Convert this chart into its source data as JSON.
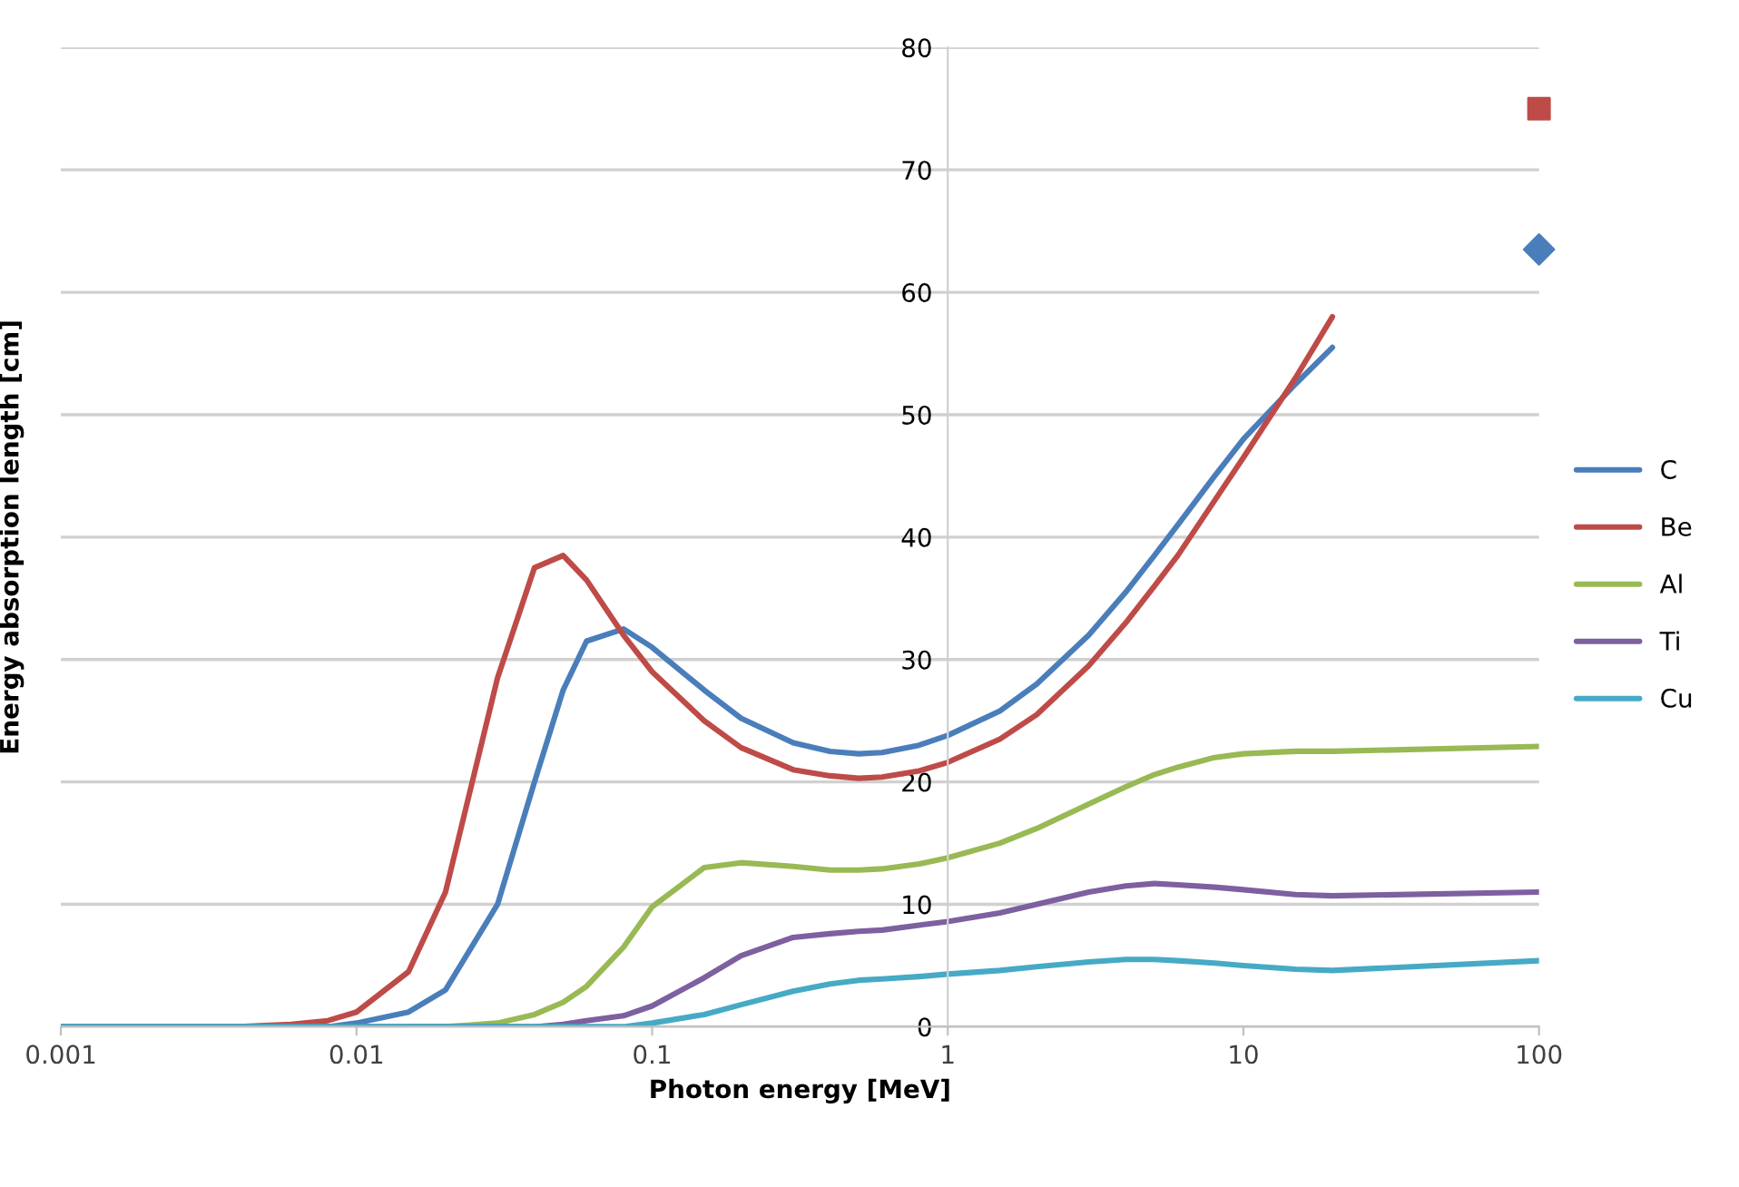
{
  "chart_data": {
    "type": "line",
    "xlabel": "Photon energy [MeV]",
    "ylabel": "Energy absorption length [cm]",
    "log": "x",
    "xlim": [
      0.001,
      100
    ],
    "xticks": [
      0.001,
      0.01,
      0.1,
      1,
      10,
      100
    ],
    "ylim": [
      0,
      80
    ],
    "yticks": [
      0,
      10,
      20,
      30,
      40,
      50,
      60,
      70,
      80
    ],
    "grid": "y",
    "legend": "right",
    "line_style": "solid",
    "series": [
      {
        "name": "C",
        "color": "#4a7ebb",
        "x": [
          0.001,
          0.002,
          0.004,
          0.006,
          0.008,
          0.01,
          0.015,
          0.02,
          0.03,
          0.04,
          0.05,
          0.06,
          0.08,
          0.1,
          0.15,
          0.2,
          0.3,
          0.4,
          0.5,
          0.6,
          0.8,
          1,
          1.5,
          2,
          3,
          4,
          5,
          6,
          8,
          10,
          15,
          20
        ],
        "values": [
          0,
          0,
          0,
          0,
          0,
          0.3,
          1.2,
          3,
          10,
          20,
          27.5,
          31.5,
          32.5,
          31,
          27.5,
          25.2,
          23.2,
          22.5,
          22.3,
          22.4,
          23,
          23.8,
          25.8,
          28,
          32,
          35.5,
          38.5,
          41,
          45,
          48,
          52.5,
          55.5
        ]
      },
      {
        "type": "scatter",
        "color": "#4a7ebb",
        "marker": "diamond",
        "x": [
          100
        ],
        "values": [
          63.5
        ]
      },
      {
        "name": "Be",
        "color": "#be4b48",
        "x": [
          0.001,
          0.002,
          0.004,
          0.006,
          0.008,
          0.01,
          0.015,
          0.02,
          0.03,
          0.04,
          0.05,
          0.06,
          0.08,
          0.1,
          0.15,
          0.2,
          0.3,
          0.4,
          0.5,
          0.6,
          0.8,
          1,
          1.5,
          2,
          3,
          4,
          5,
          6,
          8,
          10,
          15,
          20
        ],
        "values": [
          0,
          0,
          0,
          0.2,
          0.5,
          1.2,
          4.5,
          11,
          28.5,
          37.5,
          38.5,
          36.5,
          32,
          29,
          25,
          22.8,
          21,
          20.5,
          20.3,
          20.4,
          20.9,
          21.6,
          23.5,
          25.5,
          29.5,
          33,
          36,
          38.5,
          43,
          46.5,
          53,
          58
        ]
      },
      {
        "type": "scatter",
        "color": "#be4b48",
        "marker": "square",
        "x": [
          100
        ],
        "values": [
          75
        ]
      },
      {
        "name": "Al",
        "color": "#98b954",
        "x": [
          0.015,
          0.02,
          0.03,
          0.04,
          0.05,
          0.06,
          0.08,
          0.1,
          0.15,
          0.2,
          0.3,
          0.4,
          0.5,
          0.6,
          0.8,
          1,
          1.5,
          2,
          3,
          4,
          5,
          6,
          8,
          10,
          15,
          20,
          100
        ],
        "values": [
          0,
          0,
          0.3,
          1,
          2,
          3.3,
          6.5,
          9.8,
          13,
          13.4,
          13.1,
          12.8,
          12.8,
          12.9,
          13.3,
          13.8,
          15,
          16.2,
          18.2,
          19.6,
          20.6,
          21.2,
          22,
          22.3,
          22.5,
          22.5,
          22.9
        ]
      },
      {
        "name": "Ti",
        "color": "#7d60a0",
        "x": [
          0.001,
          0.002,
          0.004,
          0.006,
          0.008,
          0.01,
          0.015,
          0.02,
          0.03,
          0.04,
          0.05,
          0.06,
          0.08,
          0.1,
          0.15,
          0.2,
          0.3,
          0.4,
          0.5,
          0.6,
          0.8,
          1,
          1.5,
          2,
          3,
          4,
          5,
          6,
          8,
          10,
          15,
          20,
          100
        ],
        "values": [
          0,
          0,
          0,
          0,
          0,
          0,
          0,
          0,
          0,
          0,
          0.2,
          0.5,
          0.9,
          1.7,
          4,
          5.8,
          7.3,
          7.6,
          7.8,
          7.9,
          8.3,
          8.6,
          9.3,
          10,
          11,
          11.5,
          11.7,
          11.6,
          11.4,
          11.2,
          10.8,
          10.7,
          11
        ]
      },
      {
        "name": "Cu",
        "color": "#46aac5",
        "x": [
          0.001,
          0.002,
          0.004,
          0.006,
          0.008,
          0.01,
          0.015,
          0.02,
          0.03,
          0.04,
          0.05,
          0.06,
          0.08,
          0.1,
          0.15,
          0.2,
          0.3,
          0.4,
          0.5,
          0.6,
          0.8,
          1,
          1.5,
          2,
          3,
          4,
          5,
          6,
          8,
          10,
          15,
          20,
          100
        ],
        "values": [
          0,
          0,
          0,
          0,
          0,
          0,
          0,
          0,
          0,
          0,
          0,
          0,
          0,
          0.3,
          1,
          1.8,
          2.9,
          3.5,
          3.8,
          3.9,
          4.1,
          4.3,
          4.6,
          4.9,
          5.3,
          5.5,
          5.5,
          5.4,
          5.2,
          5,
          4.7,
          4.6,
          5.4
        ]
      }
    ]
  }
}
